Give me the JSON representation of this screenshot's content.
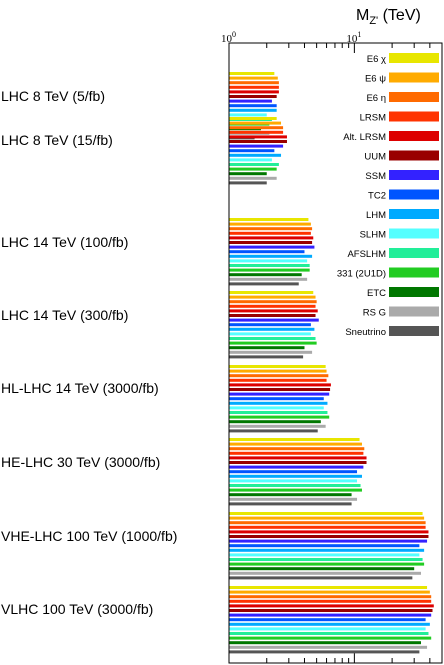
{
  "chart_data": {
    "type": "bar",
    "orientation": "horizontal",
    "x_scale": "log",
    "xlim": [
      1,
      50
    ],
    "x_ticks": [
      {
        "value": 1,
        "label": "10",
        "exp": "0"
      },
      {
        "value": 10,
        "label": "10",
        "exp": "1"
      }
    ],
    "axis_title": "M",
    "axis_title_sub": "Z'",
    "axis_title_unit": " (TeV)",
    "legend_placement": "top-right",
    "scenarios": [
      {
        "label": "LHC 8 TeV (5/fb)",
        "values": [
          2.3,
          2.45,
          2.5,
          2.5,
          2.5,
          2.4,
          2.2,
          2.4,
          2.4,
          2.0,
          2.2,
          2.1,
          1.8,
          2.1,
          1.6
        ]
      },
      {
        "label": "LHC 8 TeV (15/fb)",
        "values": [
          2.4,
          2.6,
          2.7,
          2.7,
          2.9,
          2.9,
          2.7,
          2.3,
          2.6,
          2.2,
          2.5,
          2.4,
          2.0,
          2.4,
          2.0
        ]
      },
      {
        "label": "LHC 14 TeV (100/fb)",
        "values": [
          4.3,
          4.5,
          4.6,
          4.5,
          4.7,
          4.6,
          4.8,
          4.0,
          4.6,
          4.2,
          4.4,
          4.4,
          3.8,
          4.2,
          3.6
        ]
      },
      {
        "label": "LHC 14 TeV (300/fb)",
        "values": [
          4.7,
          4.9,
          5.0,
          4.9,
          5.1,
          4.9,
          5.2,
          4.5,
          4.8,
          4.5,
          4.9,
          5.0,
          4.0,
          4.6,
          3.9
        ]
      },
      {
        "label": "HL-LHC 14 TeV (3000/fb)",
        "values": [
          5.9,
          6.0,
          6.2,
          6.0,
          6.5,
          6.4,
          6.3,
          5.7,
          6.1,
          5.7,
          6.1,
          6.3,
          5.4,
          5.9,
          5.1
        ]
      },
      {
        "label": "HE-LHC 30 TeV (3000/fb)",
        "values": [
          11.0,
          11.5,
          12.0,
          11.8,
          12.5,
          12.5,
          11.8,
          10.5,
          11.5,
          10.5,
          11.2,
          11.5,
          9.5,
          10.5,
          9.5
        ]
      },
      {
        "label": "VHE-LHC 100 TeV (1000/fb)",
        "values": [
          35,
          36,
          37,
          37,
          39,
          39,
          38,
          33,
          36,
          33,
          35,
          36,
          30,
          34,
          29
        ]
      },
      {
        "label": "VLHC 100 TeV (3000/fb)",
        "values": [
          38,
          40,
          41,
          41,
          43,
          42,
          41,
          37,
          40,
          37,
          39,
          41,
          34,
          38,
          33
        ]
      }
    ],
    "series": [
      {
        "name": "E6 χ",
        "color": "#e8e600"
      },
      {
        "name": "E6 ψ",
        "color": "#ffab00"
      },
      {
        "name": "E6 η",
        "color": "#ff6a00"
      },
      {
        "name": "LRSM",
        "color": "#ff3300"
      },
      {
        "name": "Alt. LRSM",
        "color": "#dd0000"
      },
      {
        "name": "UUM",
        "color": "#990000"
      },
      {
        "name": "SSM",
        "color": "#3322ff"
      },
      {
        "name": "TC2",
        "color": "#0055ff"
      },
      {
        "name": "LHM",
        "color": "#00aaff"
      },
      {
        "name": "SLHM",
        "color": "#55ffff"
      },
      {
        "name": "AFSLHM",
        "color": "#22ee99"
      },
      {
        "name": "331 (2U1D)",
        "color": "#22cc22"
      },
      {
        "name": "ETC",
        "color": "#007700"
      },
      {
        "name": "RS G",
        "color": "#aaaaaa"
      },
      {
        "name": "Sneutrino",
        "color": "#555555"
      }
    ]
  }
}
